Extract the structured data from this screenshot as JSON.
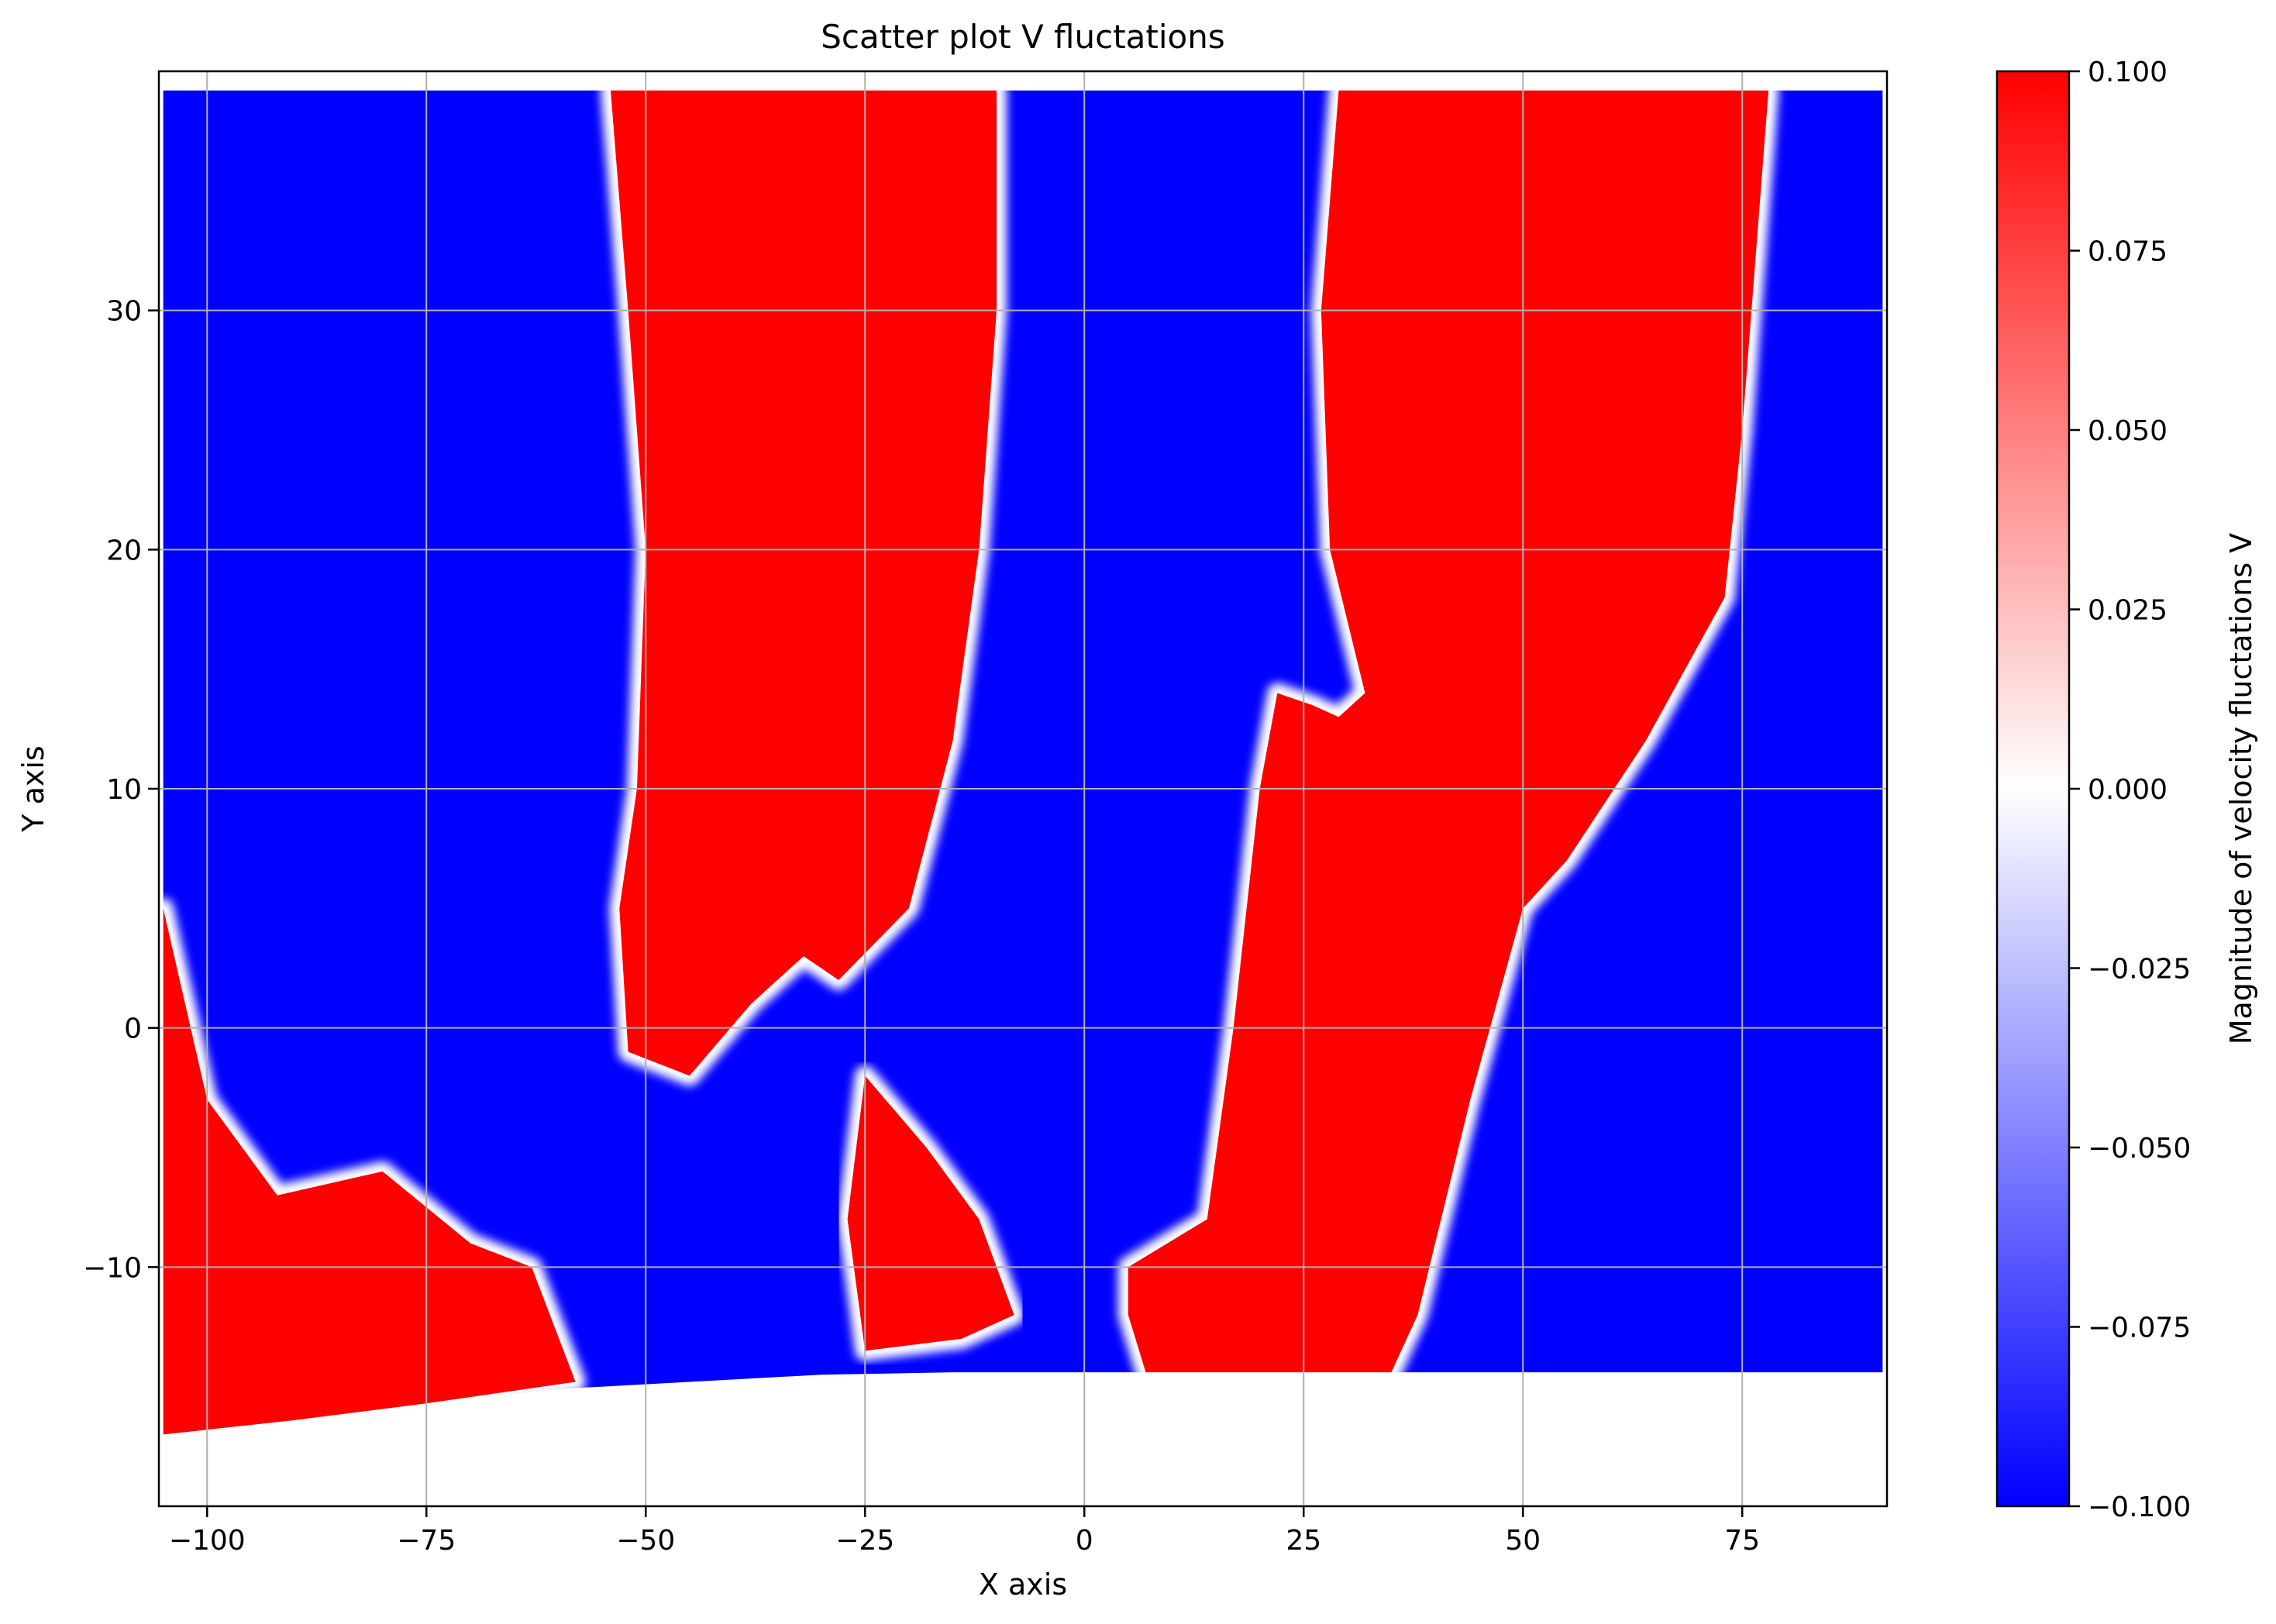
{
  "chart_data": {
    "type": "scatter",
    "title": "Scatter plot V fluctations",
    "xlabel": "X axis",
    "ylabel": "Y axis",
    "xlim": [
      -105.5,
      91.5
    ],
    "ylim": [
      -20,
      40
    ],
    "x_ticks": [
      -100,
      -75,
      -50,
      -25,
      0,
      25,
      50,
      75
    ],
    "x_tick_labels": [
      "−100",
      "−75",
      "−50",
      "−25",
      "0",
      "25",
      "50",
      "75"
    ],
    "y_ticks": [
      -10,
      0,
      10,
      20,
      30
    ],
    "y_tick_labels": [
      "−10",
      "0",
      "10",
      "20",
      "30"
    ],
    "grid": true,
    "colormap": "bwr",
    "colors": {
      "negative": "#0000ff",
      "neutral": "#ffffff",
      "positive": "#ff0000",
      "grid": "#b0b0b0"
    },
    "colorbar": {
      "label": "Magnitude of velocity fluctations V",
      "range": [
        -0.1,
        0.1
      ],
      "ticks": [
        0.1,
        0.075,
        0.05,
        0.025,
        0.0,
        -0.025,
        -0.05,
        -0.075,
        -0.1
      ],
      "tick_labels": [
        "0.100",
        "0.075",
        "0.050",
        "0.025",
        "0.000",
        "−0.025",
        "−0.050",
        "−0.075",
        "−0.100"
      ]
    },
    "point_field": {
      "x_range": [
        -105,
        91
      ],
      "y_top": 39.2,
      "y_bottom_profile": [
        [
          -105,
          -17
        ],
        [
          -90,
          -16.4
        ],
        [
          -75,
          -15.7
        ],
        [
          -60,
          -15.1
        ],
        [
          -45,
          -14.8
        ],
        [
          -30,
          -14.5
        ],
        [
          -15,
          -14.4
        ],
        [
          0,
          -14.4
        ],
        [
          91,
          -14.4
        ]
      ],
      "positive_regions": [
        {
          "name": "red-band-left",
          "outline": [
            [
              -54,
              39.2
            ],
            [
              -10,
              39.2
            ],
            [
              -10,
              30
            ],
            [
              -12,
              20
            ],
            [
              -15,
              12
            ],
            [
              -20,
              5
            ],
            [
              -28,
              2
            ],
            [
              -32,
              3
            ],
            [
              -38,
              1
            ],
            [
              -45,
              -2
            ],
            [
              -52,
              -1
            ],
            [
              -53,
              5
            ],
            [
              -51,
              10
            ],
            [
              -50,
              20
            ],
            [
              -52,
              30
            ]
          ]
        },
        {
          "name": "red-patch-mid",
          "outline": [
            [
              -25,
              -2
            ],
            [
              -18,
              -5
            ],
            [
              -12,
              -8
            ],
            [
              -8,
              -12
            ],
            [
              -14,
              -13
            ],
            [
              -25,
              -13.5
            ],
            [
              -27,
              -8
            ]
          ]
        },
        {
          "name": "red-band-right",
          "outline": [
            [
              29,
              39.2
            ],
            [
              78,
              39.2
            ],
            [
              75,
              25
            ],
            [
              73,
              18
            ],
            [
              64,
              12
            ],
            [
              55,
              7
            ],
            [
              50,
              5
            ],
            [
              44,
              -3
            ],
            [
              38,
              -12
            ],
            [
              35,
              -14.4
            ],
            [
              7,
              -14.4
            ],
            [
              5,
              -12
            ],
            [
              5,
              -10
            ],
            [
              14,
              -8
            ],
            [
              17,
              0
            ],
            [
              20,
              10
            ],
            [
              22,
              14
            ],
            [
              26,
              13.5
            ],
            [
              29,
              13
            ],
            [
              32,
              14
            ],
            [
              28,
              20
            ],
            [
              27,
              30
            ]
          ]
        },
        {
          "name": "red-patch-lower-left",
          "outline": [
            [
              -105,
              5
            ],
            [
              -100,
              -3
            ],
            [
              -92,
              -7
            ],
            [
              -80,
              -6
            ],
            [
              -70,
              -9
            ],
            [
              -63,
              -10
            ],
            [
              -58,
              -14.8
            ],
            [
              -75,
              -15.7
            ],
            [
              -90,
              -16.4
            ],
            [
              -105,
              -17
            ]
          ]
        }
      ]
    }
  }
}
